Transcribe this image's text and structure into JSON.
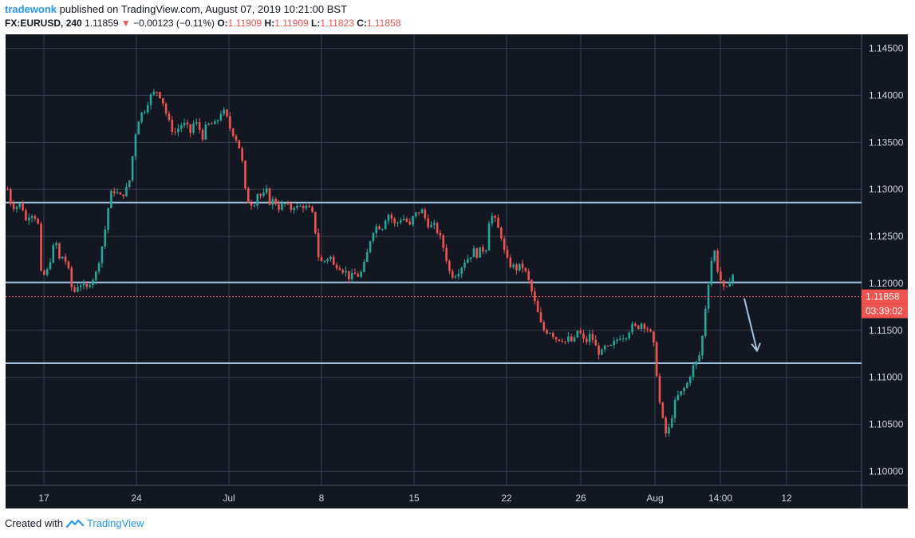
{
  "header": {
    "author": "tradewonk",
    "published_text": "published on TradingView.com, August 07, 2019 10:21:00 BST",
    "symbol": "FX:EURUSD",
    "interval": "240",
    "last_price": "1.11859",
    "change": "−0.00123 (−0.11%)",
    "open_label": "O:",
    "open": "1.11909",
    "high_label": "H:",
    "high": "1.11909",
    "low_label": "L:",
    "low": "1.11823",
    "close_label": "C:",
    "close": "1.11858"
  },
  "footer": {
    "created_with": "Created with",
    "brand": "TradingView"
  },
  "colors": {
    "background": "#131722",
    "grid": "#363c4e",
    "up": "#26a69a",
    "down": "#ef5350",
    "level_line": "#a3c1e0",
    "price_line": "#ef5350",
    "axis_text": "#131722"
  },
  "chart_data": {
    "type": "candlestick",
    "title": "",
    "ylim": [
      1.0985,
      1.1465
    ],
    "y_ticks": [
      "1.14500",
      "1.14000",
      "1.13500",
      "1.13000",
      "1.12500",
      "1.12000",
      "1.11500",
      "1.11000",
      "1.10500",
      "1.10000"
    ],
    "x_ticks": [
      "17",
      "24",
      "Jul",
      "8",
      "15",
      "22",
      "26",
      "Aug",
      "14:00",
      "12"
    ],
    "horizontal_levels": [
      1.1286,
      1.1201,
      1.1115
    ],
    "current_price": 1.11858,
    "current_price_label": "1.11858",
    "countdown_label": "03:39:02",
    "projection_arrow": {
      "from": 1.1184,
      "to": 1.1128,
      "direction": "down"
    },
    "price_path": [
      [
        0,
        1.13
      ],
      [
        5,
        1.1282
      ],
      [
        12,
        1.1282
      ],
      [
        18,
        1.1285
      ],
      [
        22,
        1.1265
      ],
      [
        28,
        1.1275
      ],
      [
        33,
        1.1273
      ],
      [
        38,
        1.1265
      ],
      [
        42,
        1.121
      ],
      [
        48,
        1.1208
      ],
      [
        55,
        1.123
      ],
      [
        60,
        1.1247
      ],
      [
        65,
        1.1225
      ],
      [
        70,
        1.123
      ],
      [
        76,
        1.1215
      ],
      [
        82,
        1.1188
      ],
      [
        88,
        1.1198
      ],
      [
        93,
        1.12
      ],
      [
        98,
        1.1192
      ],
      [
        104,
        1.1203
      ],
      [
        110,
        1.1208
      ],
      [
        116,
        1.123
      ],
      [
        121,
        1.125
      ],
      [
        126,
        1.128
      ],
      [
        131,
        1.13
      ],
      [
        136,
        1.1297
      ],
      [
        141,
        1.1292
      ],
      [
        148,
        1.1298
      ],
      [
        153,
        1.131
      ],
      [
        158,
        1.1345
      ],
      [
        162,
        1.137
      ],
      [
        167,
        1.138
      ],
      [
        172,
        1.1385
      ],
      [
        178,
        1.1398
      ],
      [
        183,
        1.1402
      ],
      [
        188,
        1.1405
      ],
      [
        194,
        1.1395
      ],
      [
        199,
        1.138
      ],
      [
        204,
        1.1367
      ],
      [
        209,
        1.136
      ],
      [
        214,
        1.1365
      ],
      [
        219,
        1.137
      ],
      [
        224,
        1.1368
      ],
      [
        229,
        1.136
      ],
      [
        234,
        1.1372
      ],
      [
        239,
        1.1368
      ],
      [
        244,
        1.1355
      ],
      [
        249,
        1.1367
      ],
      [
        254,
        1.137
      ],
      [
        259,
        1.1368
      ],
      [
        264,
        1.1375
      ],
      [
        269,
        1.1385
      ],
      [
        274,
        1.1378
      ],
      [
        279,
        1.1365
      ],
      [
        284,
        1.1358
      ],
      [
        289,
        1.135
      ],
      [
        294,
        1.133
      ],
      [
        299,
        1.129
      ],
      [
        304,
        1.1285
      ],
      [
        309,
        1.1285
      ],
      [
        314,
        1.1298
      ],
      [
        319,
        1.129
      ],
      [
        324,
        1.13
      ],
      [
        329,
        1.1285
      ],
      [
        334,
        1.129
      ],
      [
        339,
        1.128
      ],
      [
        344,
        1.1283
      ],
      [
        349,
        1.1285
      ],
      [
        354,
        1.1278
      ],
      [
        359,
        1.1283
      ],
      [
        364,
        1.128
      ],
      [
        369,
        1.1283
      ],
      [
        374,
        1.1281
      ],
      [
        379,
        1.1278
      ],
      [
        384,
        1.127
      ],
      [
        389,
        1.123
      ],
      [
        394,
        1.1222
      ],
      [
        399,
        1.1225
      ],
      [
        404,
        1.123
      ],
      [
        409,
        1.1218
      ],
      [
        414,
        1.122
      ],
      [
        419,
        1.1215
      ],
      [
        424,
        1.1212
      ],
      [
        429,
        1.1205
      ],
      [
        434,
        1.121
      ],
      [
        439,
        1.1208
      ],
      [
        444,
        1.1212
      ],
      [
        449,
        1.1225
      ],
      [
        454,
        1.1245
      ],
      [
        459,
        1.1258
      ],
      [
        464,
        1.1262
      ],
      [
        469,
        1.1258
      ],
      [
        474,
        1.127
      ],
      [
        479,
        1.1275
      ],
      [
        484,
        1.1262
      ],
      [
        489,
        1.1265
      ],
      [
        494,
        1.127
      ],
      [
        499,
        1.1268
      ],
      [
        504,
        1.126
      ],
      [
        509,
        1.1272
      ],
      [
        514,
        1.1275
      ],
      [
        519,
        1.1278
      ],
      [
        524,
        1.1268
      ],
      [
        529,
        1.126
      ],
      [
        534,
        1.1262
      ],
      [
        539,
        1.1255
      ],
      [
        544,
        1.1245
      ],
      [
        549,
        1.123
      ],
      [
        554,
        1.1212
      ],
      [
        559,
        1.1208
      ],
      [
        564,
        1.1212
      ],
      [
        569,
        1.1218
      ],
      [
        574,
        1.1225
      ],
      [
        579,
        1.1228
      ],
      [
        584,
        1.1235
      ],
      [
        589,
        1.123
      ],
      [
        594,
        1.1238
      ],
      [
        599,
        1.1232
      ],
      [
        604,
        1.127
      ],
      [
        609,
        1.1272
      ],
      [
        614,
        1.126
      ],
      [
        619,
        1.125
      ],
      [
        624,
        1.1228
      ],
      [
        629,
        1.122
      ],
      [
        634,
        1.1218
      ],
      [
        639,
        1.1215
      ],
      [
        644,
        1.122
      ],
      [
        649,
        1.1212
      ],
      [
        654,
        1.12
      ],
      [
        659,
        1.1185
      ],
      [
        664,
        1.117
      ],
      [
        669,
        1.1155
      ],
      [
        674,
        1.1148
      ],
      [
        679,
        1.115
      ],
      [
        684,
        1.1145
      ],
      [
        689,
        1.114
      ],
      [
        694,
        1.1142
      ],
      [
        699,
        1.1138
      ],
      [
        704,
        1.1142
      ],
      [
        709,
        1.1135
      ],
      [
        714,
        1.115
      ],
      [
        719,
        1.1145
      ],
      [
        724,
        1.1135
      ],
      [
        729,
        1.1145
      ],
      [
        734,
        1.114
      ],
      [
        739,
        1.1128
      ],
      [
        744,
        1.1125
      ],
      [
        749,
        1.1132
      ],
      [
        754,
        1.113
      ],
      [
        759,
        1.1135
      ],
      [
        764,
        1.114
      ],
      [
        769,
        1.1145
      ],
      [
        774,
        1.1143
      ],
      [
        779,
        1.115
      ],
      [
        784,
        1.1155
      ],
      [
        789,
        1.1152
      ],
      [
        794,
        1.1158
      ],
      [
        799,
        1.1155
      ],
      [
        804,
        1.115
      ],
      [
        809,
        1.114
      ],
      [
        813,
        1.111
      ],
      [
        817,
        1.1075
      ],
      [
        821,
        1.1055
      ],
      [
        825,
        1.104
      ],
      [
        829,
        1.1045
      ],
      [
        833,
        1.106
      ],
      [
        838,
        1.1078
      ],
      [
        843,
        1.1082
      ],
      [
        848,
        1.1088
      ],
      [
        853,
        1.1095
      ],
      [
        858,
        1.111
      ],
      [
        863,
        1.1115
      ],
      [
        868,
        1.1125
      ],
      [
        872,
        1.115
      ],
      [
        876,
        1.1185
      ],
      [
        880,
        1.121
      ],
      [
        885,
        1.124
      ],
      [
        890,
        1.1215
      ],
      [
        895,
        1.12
      ],
      [
        900,
        1.1188
      ],
      [
        905,
        1.1205
      ],
      [
        910,
        1.121
      ],
      [
        915,
        1.12
      ],
      [
        920,
        1.1186
      ]
    ]
  }
}
